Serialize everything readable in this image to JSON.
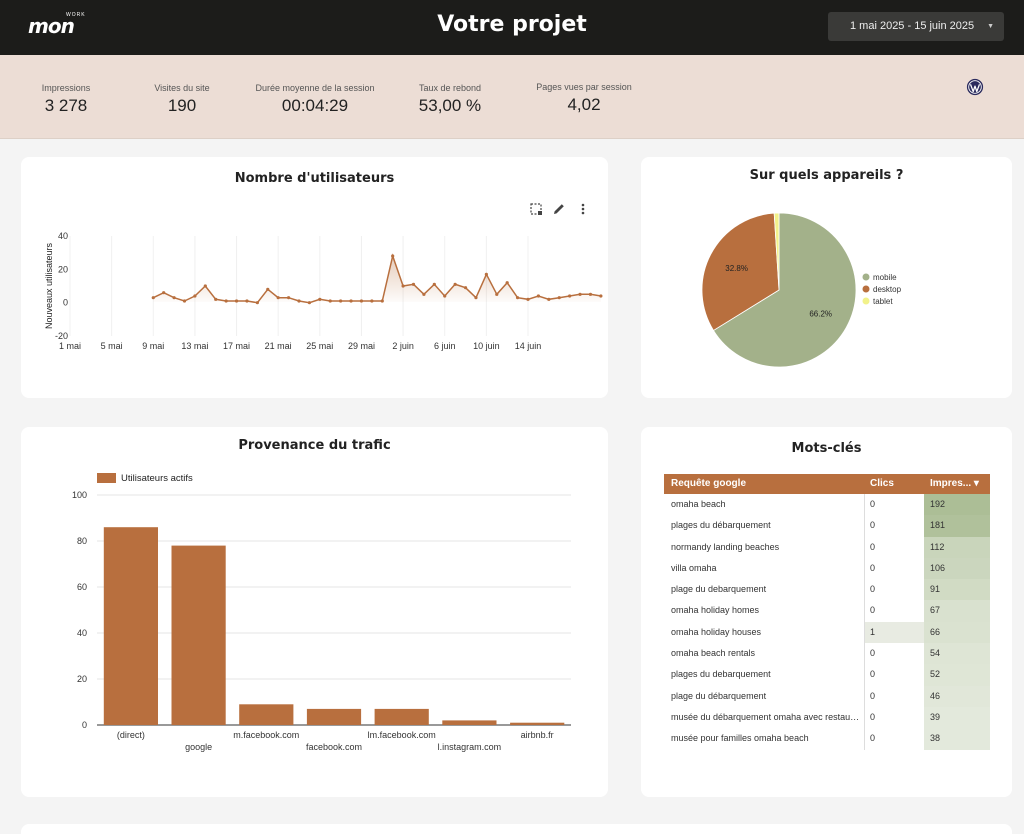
{
  "header": {
    "logo_text": "mon",
    "logo_tag": "WORK",
    "title": "Votre projet",
    "date_range": "1 mai 2025 - 15 juin 2025"
  },
  "kpis": [
    {
      "label": "Impressions",
      "value": "3 278"
    },
    {
      "label": "Visites du site",
      "value": "190"
    },
    {
      "label": "Durée moyenne de la session",
      "value": "00:04:29"
    },
    {
      "label": "Taux de rebond",
      "value": "53,00 %"
    },
    {
      "label": "Pages vues par session",
      "value": "4,02"
    }
  ],
  "colors": {
    "accent": "#b86f3e",
    "mobile": "#a3b18a",
    "desktop": "#b86f3e",
    "tablet": "#f2f28a"
  },
  "chart_data": [
    {
      "type": "line",
      "title": "Nombre d'utilisateurs",
      "ylabel": "Nouveaux utilisateurs",
      "ylim": [
        -20,
        40
      ],
      "yticks": [
        40,
        20,
        0,
        -20
      ],
      "xticks": [
        "1 mai",
        "5 mai",
        "9 mai",
        "13 mai",
        "17 mai",
        "21 mai",
        "25 mai",
        "29 mai",
        "2 juin",
        "6 juin",
        "10 juin",
        "14 juin"
      ],
      "x_start_day": 9,
      "values": [
        3,
        6,
        3,
        1,
        4,
        10,
        2,
        1,
        1,
        1,
        0,
        8,
        3,
        3,
        1,
        0,
        2,
        1,
        1,
        1,
        1,
        1,
        1,
        28,
        10,
        11,
        5,
        11,
        4,
        11,
        9,
        3,
        17,
        5,
        12,
        3,
        2,
        4,
        2,
        3,
        4,
        5,
        5,
        4
      ]
    },
    {
      "type": "pie",
      "title": "Sur quels appareils ?",
      "legend": "right",
      "slices": [
        {
          "name": "mobile",
          "value": 66.2,
          "label": "66.2%"
        },
        {
          "name": "desktop",
          "value": 32.8,
          "label": "32.8%"
        },
        {
          "name": "tablet",
          "value": 1.0,
          "label": ""
        }
      ]
    },
    {
      "type": "bar",
      "title": "Provenance du trafic",
      "series_name": "Utilisateurs actifs",
      "ylim": [
        0,
        100
      ],
      "yticks": [
        100,
        80,
        60,
        40,
        20,
        0
      ],
      "categories": [
        "(direct)",
        "google",
        "m.facebook.com",
        "facebook.com",
        "lm.facebook.com",
        "l.instagram.com",
        "airbnb.fr"
      ],
      "values": [
        86,
        78,
        9,
        7,
        7,
        2,
        1
      ]
    }
  ],
  "keywords": {
    "title": "Mots-clés",
    "columns": [
      "Requête google",
      "Clics",
      "Impres... ▾"
    ],
    "rows": [
      {
        "query": "omaha beach",
        "clicks": "0",
        "impressions": "192"
      },
      {
        "query": "plages du débarquement",
        "clicks": "0",
        "impressions": "181"
      },
      {
        "query": "normandy landing beaches",
        "clicks": "0",
        "impressions": "112"
      },
      {
        "query": "villa omaha",
        "clicks": "0",
        "impressions": "106"
      },
      {
        "query": "plage du debarquement",
        "clicks": "0",
        "impressions": "91"
      },
      {
        "query": "omaha holiday homes",
        "clicks": "0",
        "impressions": "67"
      },
      {
        "query": "omaha holiday houses",
        "clicks": "1",
        "impressions": "66"
      },
      {
        "query": "omaha beach rentals",
        "clicks": "0",
        "impressions": "54"
      },
      {
        "query": "plages du debarquement",
        "clicks": "0",
        "impressions": "52"
      },
      {
        "query": "plage du débarquement",
        "clicks": "0",
        "impressions": "46"
      },
      {
        "query": "musée du débarquement omaha avec restaura...",
        "clicks": "0",
        "impressions": "39"
      },
      {
        "query": "musée pour familles omaha beach",
        "clicks": "0",
        "impressions": "38"
      }
    ]
  }
}
